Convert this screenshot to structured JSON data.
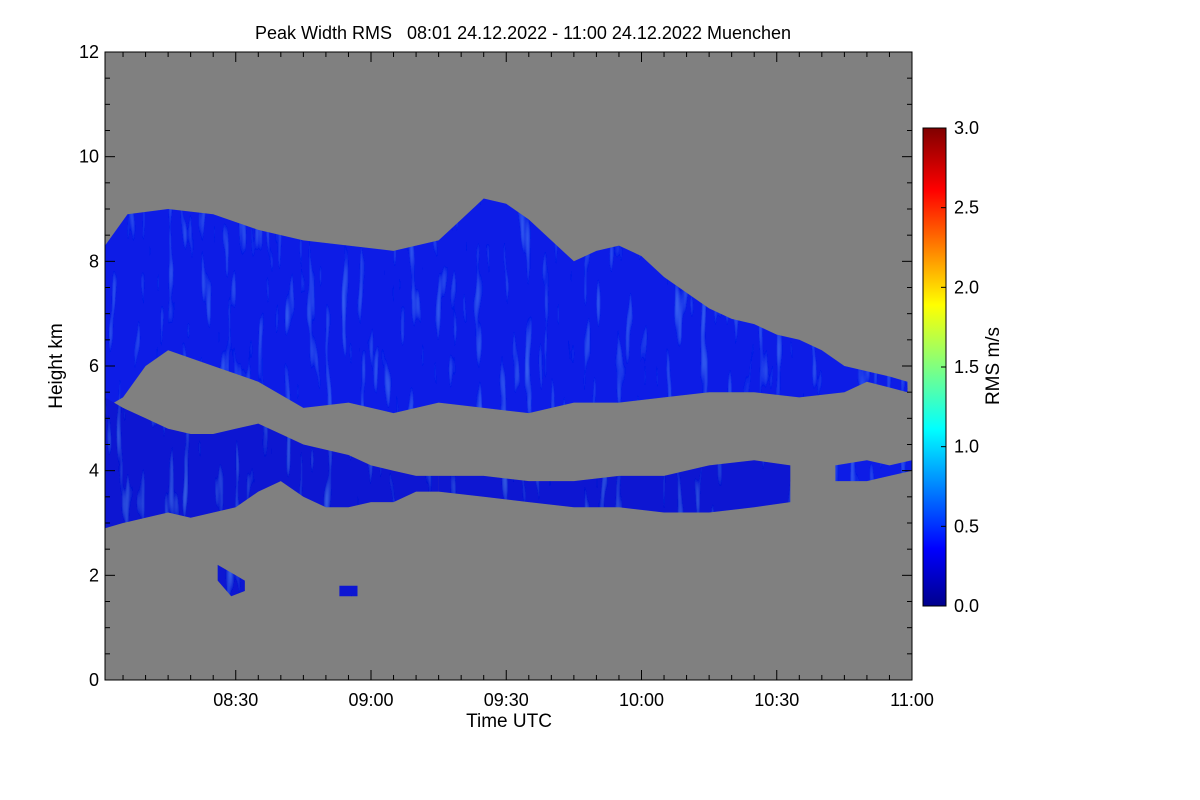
{
  "chart_data": {
    "type": "heatmap",
    "title": "Peak Width RMS   08:01 24.12.2022 - 11:00 24.12.2022 Muenchen",
    "xlabel": "Time UTC",
    "ylabel": "Height km",
    "x_ticks": [
      {
        "label": "08:30",
        "minutes": 510
      },
      {
        "label": "09:00",
        "minutes": 540
      },
      {
        "label": "09:30",
        "minutes": 570
      },
      {
        "label": "10:00",
        "minutes": 600
      },
      {
        "label": "10:30",
        "minutes": 630
      },
      {
        "label": "11:00",
        "minutes": 660
      }
    ],
    "xlim": [
      "08:01",
      "11:00"
    ],
    "y_ticks": [
      0,
      2,
      4,
      6,
      8,
      10,
      12
    ],
    "ylim": [
      0,
      12
    ],
    "colorbar": {
      "label": "RMS m/s",
      "range": [
        0.0,
        3.0
      ],
      "ticks": [
        "0.0",
        "0.5",
        "1.0",
        "1.5",
        "2.0",
        "2.5",
        "3.0"
      ]
    },
    "background_color": "#808080",
    "echo_regions": [
      {
        "name": "upper cloud layer",
        "rms_ms": 0.35,
        "color": "#0a1ee6",
        "top": [
          [
            481,
            8.3
          ],
          [
            486,
            8.9
          ],
          [
            495,
            9.0
          ],
          [
            505,
            8.9
          ],
          [
            515,
            8.6
          ],
          [
            525,
            8.4
          ],
          [
            535,
            8.3
          ],
          [
            545,
            8.2
          ],
          [
            555,
            8.4
          ],
          [
            560,
            8.8
          ],
          [
            565,
            9.2
          ],
          [
            570,
            9.1
          ],
          [
            575,
            8.8
          ],
          [
            580,
            8.4
          ],
          [
            585,
            8.0
          ],
          [
            590,
            8.2
          ],
          [
            595,
            8.3
          ],
          [
            600,
            8.1
          ],
          [
            605,
            7.7
          ],
          [
            610,
            7.4
          ],
          [
            615,
            7.1
          ],
          [
            620,
            6.9
          ],
          [
            625,
            6.8
          ],
          [
            630,
            6.6
          ],
          [
            635,
            6.5
          ],
          [
            640,
            6.3
          ],
          [
            645,
            6.0
          ],
          [
            650,
            5.9
          ],
          [
            655,
            5.8
          ],
          [
            659,
            5.7
          ]
        ],
        "bottom": [
          [
            659,
            5.5
          ],
          [
            650,
            5.7
          ],
          [
            645,
            5.5
          ],
          [
            635,
            5.4
          ],
          [
            625,
            5.5
          ],
          [
            615,
            5.5
          ],
          [
            605,
            5.4
          ],
          [
            595,
            5.3
          ],
          [
            585,
            5.3
          ],
          [
            575,
            5.1
          ],
          [
            565,
            5.2
          ],
          [
            555,
            5.3
          ],
          [
            545,
            5.1
          ],
          [
            535,
            5.3
          ],
          [
            525,
            5.2
          ],
          [
            515,
            5.7
          ],
          [
            505,
            6.0
          ],
          [
            495,
            6.3
          ],
          [
            490,
            6.0
          ],
          [
            485,
            5.4
          ],
          [
            481,
            5.2
          ]
        ]
      },
      {
        "name": "slanted lower band",
        "rms_ms": 0.3,
        "color": "#0a14d2",
        "top": [
          [
            481,
            5.4
          ],
          [
            485,
            5.2
          ],
          [
            490,
            5.0
          ],
          [
            495,
            4.8
          ],
          [
            500,
            4.7
          ],
          [
            505,
            4.7
          ],
          [
            510,
            4.8
          ],
          [
            515,
            4.9
          ],
          [
            520,
            4.7
          ],
          [
            525,
            4.5
          ],
          [
            530,
            4.4
          ],
          [
            535,
            4.3
          ],
          [
            540,
            4.1
          ],
          [
            545,
            4.0
          ],
          [
            550,
            3.9
          ],
          [
            555,
            3.9
          ]
        ],
        "bottom": [
          [
            555,
            3.6
          ],
          [
            550,
            3.6
          ],
          [
            545,
            3.4
          ],
          [
            540,
            3.4
          ],
          [
            535,
            3.3
          ],
          [
            530,
            3.3
          ],
          [
            525,
            3.5
          ],
          [
            520,
            3.8
          ],
          [
            515,
            3.6
          ],
          [
            510,
            3.3
          ],
          [
            505,
            3.2
          ],
          [
            500,
            3.1
          ],
          [
            495,
            3.2
          ],
          [
            490,
            3.1
          ],
          [
            485,
            3.0
          ],
          [
            481,
            2.9
          ]
        ]
      },
      {
        "name": "mid-level layer",
        "rms_ms": 0.3,
        "color": "#0a14d2",
        "top": [
          [
            555,
            3.9
          ],
          [
            565,
            3.9
          ],
          [
            575,
            3.8
          ],
          [
            585,
            3.8
          ],
          [
            595,
            3.9
          ],
          [
            605,
            3.9
          ],
          [
            615,
            4.1
          ],
          [
            625,
            4.2
          ],
          [
            633,
            4.1
          ]
        ],
        "bottom": [
          [
            633,
            3.4
          ],
          [
            625,
            3.3
          ],
          [
            615,
            3.2
          ],
          [
            605,
            3.2
          ],
          [
            595,
            3.3
          ],
          [
            585,
            3.3
          ],
          [
            575,
            3.4
          ],
          [
            565,
            3.5
          ],
          [
            555,
            3.6
          ]
        ]
      },
      {
        "name": "right mid patch",
        "rms_ms": 0.35,
        "color": "#0a1ee6",
        "top": [
          [
            643,
            4.1
          ],
          [
            650,
            4.2
          ],
          [
            655,
            4.1
          ],
          [
            660,
            4.2
          ]
        ],
        "bottom": [
          [
            660,
            4.0
          ],
          [
            655,
            3.9
          ],
          [
            650,
            3.8
          ],
          [
            643,
            3.8
          ]
        ]
      },
      {
        "name": "low patch 1",
        "rms_ms": 0.3,
        "color": "#0a14d2",
        "top": [
          [
            506,
            2.2
          ],
          [
            510,
            2.0
          ],
          [
            512,
            1.9
          ]
        ],
        "bottom": [
          [
            512,
            1.7
          ],
          [
            509,
            1.6
          ],
          [
            506,
            1.9
          ]
        ]
      },
      {
        "name": "low patch 2",
        "rms_ms": 0.3,
        "color": "#0a14d2",
        "top": [
          [
            533,
            1.8
          ],
          [
            537,
            1.8
          ]
        ],
        "bottom": [
          [
            537,
            1.6
          ],
          [
            533,
            1.6
          ]
        ]
      }
    ]
  }
}
